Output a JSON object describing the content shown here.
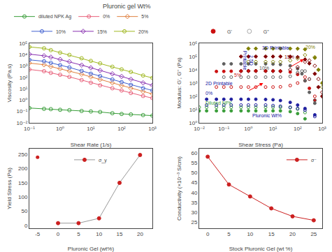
{
  "chart_data": [
    {
      "type": "line",
      "title": "Pluronic gel Wt%",
      "x_label": "Shear Rate (1/s)",
      "y_label": "Viscosity (Pa.s)",
      "log": true,
      "xlim": [
        0.1,
        1000
      ],
      "ylim": [
        0.01,
        100000
      ],
      "xticks": [
        {
          "value": 0.1,
          "label": "10⁻¹"
        },
        {
          "value": 1,
          "label": "10⁰"
        },
        {
          "value": 10,
          "label": "10¹"
        },
        {
          "value": 100,
          "label": "10²"
        },
        {
          "value": 1000,
          "label": "10³"
        }
      ],
      "yticks": [
        {
          "value": 0.01,
          "label": "10⁻²"
        },
        {
          "value": 0.1,
          "label": "10⁻¹"
        },
        {
          "value": 1,
          "label": "10⁰"
        },
        {
          "value": 10,
          "label": "10¹"
        },
        {
          "value": 100,
          "label": "10²"
        },
        {
          "value": 1000,
          "label": "10³"
        },
        {
          "value": 10000,
          "label": "10⁴"
        },
        {
          "value": 100000,
          "label": "10⁵"
        }
      ],
      "grid": false,
      "legend": "top",
      "series": [
        {
          "name": "diluted NPK Ag",
          "color": "#3a9e3a",
          "marker": "circle-open",
          "x": [
            0.1,
            0.3,
            0.5,
            1,
            2,
            5,
            10,
            20,
            50,
            100,
            200,
            500,
            1000
          ],
          "values": [
            0.2,
            0.17,
            0.16,
            0.14,
            0.13,
            0.11,
            0.1,
            0.09,
            0.07,
            0.06,
            0.055,
            0.048,
            0.043
          ]
        },
        {
          "name": "0%",
          "color": "#e8607a",
          "marker": "circle-open",
          "x": [
            0.1,
            0.3,
            0.5,
            1,
            2,
            5,
            10,
            20,
            50,
            100,
            200,
            500,
            1000
          ],
          "values": [
            500,
            350,
            250,
            170,
            110,
            58,
            34,
            20,
            11,
            7,
            4.2,
            2.3,
            1.5
          ]
        },
        {
          "name": "5%",
          "color": "#e08040",
          "marker": "diamond-open",
          "x": [
            0.1,
            0.3,
            0.5,
            1,
            2,
            5,
            10,
            20,
            50,
            100,
            200,
            500,
            1000
          ],
          "values": [
            1800,
            1300,
            900,
            580,
            360,
            190,
            110,
            65,
            33,
            19,
            11,
            5.5,
            3.5
          ]
        },
        {
          "name": "10%",
          "color": "#4060d0",
          "marker": "circle-open",
          "x": [
            0.1,
            0.3,
            0.5,
            1,
            2,
            5,
            10,
            20,
            50,
            100,
            200,
            500,
            1000
          ],
          "values": [
            3500,
            2600,
            1900,
            1200,
            750,
            370,
            210,
            130,
            65,
            38,
            22,
            11,
            7
          ]
        },
        {
          "name": "15%",
          "color": "#8830b0",
          "marker": "diamond-open",
          "x": [
            0.1,
            0.3,
            0.5,
            1,
            2,
            5,
            10,
            20,
            50,
            100,
            200,
            500,
            1000
          ],
          "values": [
            11000,
            8000,
            6000,
            3800,
            2400,
            1200,
            700,
            410,
            205,
            120,
            68,
            33,
            20
          ]
        },
        {
          "name": "20%",
          "color": "#a0b820",
          "marker": "circle-open",
          "x": [
            0.1,
            0.3,
            0.5,
            1,
            2,
            5,
            10,
            20,
            50,
            100,
            200,
            500,
            1000
          ],
          "values": [
            48000,
            36000,
            25000,
            15000,
            9500,
            4800,
            2800,
            1700,
            860,
            510,
            300,
            145,
            90
          ]
        }
      ]
    },
    {
      "type": "scatter",
      "x_label": "Shear Stress (Pa)",
      "y_label": "Modulus: G', G'' (Pa)",
      "log": true,
      "xlim": [
        0.01,
        1000
      ],
      "ylim": [
        1,
        1000000
      ],
      "xticks": [
        {
          "value": 0.01,
          "label": "10⁻²"
        },
        {
          "value": 0.1,
          "label": "10⁻¹"
        },
        {
          "value": 1,
          "label": "10⁰"
        },
        {
          "value": 10,
          "label": "10¹"
        },
        {
          "value": 100,
          "label": "10²"
        },
        {
          "value": 1000,
          "label": "10³"
        }
      ],
      "yticks": [
        {
          "value": 1,
          "label": "10⁰"
        },
        {
          "value": 10,
          "label": "10¹"
        },
        {
          "value": 100,
          "label": "10²"
        },
        {
          "value": 1000,
          "label": "10³"
        },
        {
          "value": 10000,
          "label": "10⁴"
        },
        {
          "value": 100000,
          "label": "10⁵"
        },
        {
          "value": 1000000,
          "label": "10⁶"
        }
      ],
      "grid": false,
      "legend": "top",
      "legend_entries": [
        {
          "name": "G'",
          "color": "#cc1010",
          "marker": "circle"
        },
        {
          "name": "G''",
          "color": "#aaaaaa",
          "marker": "circle-open"
        }
      ],
      "series": [
        {
          "color": "#3a9e3a",
          "marker": "circle",
          "x": [
            0.01,
            0.02,
            0.05,
            0.1,
            0.2,
            0.5,
            1,
            2,
            5,
            10,
            20,
            50,
            100,
            200
          ],
          "values": [
            8,
            8,
            8,
            8,
            8,
            8,
            8,
            8,
            8,
            8,
            8,
            7,
            5,
            2
          ]
        },
        {
          "color": "#3a9e3a",
          "marker": "circle-open",
          "x": [
            0.01,
            0.02,
            0.05,
            0.1,
            0.2,
            0.5,
            1,
            2,
            5,
            10,
            20,
            50,
            100,
            200
          ],
          "values": [
            15,
            15,
            15,
            15,
            15,
            15,
            15,
            15,
            15,
            15,
            15,
            14,
            11,
            6
          ]
        },
        {
          "color": "#2020a0",
          "marker": "circle",
          "x": [
            0.02,
            0.05,
            0.1,
            0.2,
            0.5,
            1,
            2,
            5,
            10,
            20,
            50,
            100,
            200,
            500
          ],
          "values": [
            60,
            60,
            60,
            60,
            60,
            60,
            60,
            58,
            55,
            48,
            35,
            22,
            12,
            4
          ]
        },
        {
          "color": "#2020a0",
          "marker": "circle-open",
          "x": [
            0.02,
            0.05,
            0.1,
            0.2,
            0.5,
            1,
            2,
            5,
            10,
            20,
            50,
            100,
            200,
            500
          ],
          "values": [
            22,
            22,
            22,
            22,
            22,
            22,
            22,
            22,
            20,
            18,
            15,
            12,
            9,
            3
          ]
        },
        {
          "color": "#cc1010",
          "marker": "circle",
          "x": [
            0.05,
            0.1,
            0.2,
            0.5,
            1,
            2,
            5,
            10,
            20,
            50,
            100,
            200,
            300,
            500
          ],
          "values": [
            7500,
            7600,
            7800,
            8000,
            8200,
            8300,
            8200,
            8100,
            7800,
            6800,
            4500,
            1500,
            400,
            50
          ]
        },
        {
          "color": "#cc1010",
          "marker": "circle-open",
          "x": [
            0.05,
            0.1,
            0.2,
            0.5,
            1,
            2,
            5,
            10,
            20,
            50,
            100,
            200,
            300,
            500
          ],
          "values": [
            500,
            500,
            500,
            500,
            500,
            500,
            500,
            500,
            520,
            650,
            1000,
            2800,
            2000,
            100
          ]
        },
        {
          "color": "#606060",
          "marker": "circle",
          "x": [
            0.1,
            0.2,
            0.5,
            1,
            2,
            5,
            10,
            20,
            50,
            100,
            150,
            200,
            300,
            500
          ],
          "values": [
            28000,
            28000,
            28000,
            28000,
            28000,
            28000,
            27000,
            25000,
            20000,
            12000,
            5000,
            1500,
            200,
            30
          ]
        },
        {
          "color": "#606060",
          "marker": "circle-open",
          "x": [
            0.1,
            0.2,
            0.5,
            1,
            2,
            5,
            10,
            20,
            50,
            100,
            150,
            200,
            300,
            500
          ],
          "values": [
            2800,
            2800,
            2800,
            2800,
            2800,
            2800,
            2800,
            2800,
            3200,
            6000,
            8000,
            8000,
            2000,
            50
          ]
        },
        {
          "color": "#800000",
          "marker": "diamond",
          "x": [
            0.5,
            1,
            2,
            5,
            10,
            20,
            50,
            100,
            200,
            300,
            500,
            700,
            1000
          ],
          "values": [
            100000,
            100000,
            100000,
            100000,
            100000,
            100000,
            98000,
            90000,
            60000,
            30000,
            5000,
            500,
            100
          ]
        },
        {
          "color": "#800000",
          "marker": "diamond-open",
          "x": [
            0.5,
            1,
            2,
            5,
            10,
            20,
            50,
            100,
            200,
            300,
            500,
            700,
            1000
          ],
          "values": [
            8000,
            8000,
            8000,
            8000,
            8000,
            8000,
            10000,
            16000,
            40000,
            50000,
            20000,
            2000,
            200
          ]
        },
        {
          "color": "#808000",
          "marker": "diamond",
          "x": [
            1,
            2,
            5,
            10,
            20,
            50,
            100,
            200,
            500,
            700,
            1000
          ],
          "values": [
            400000,
            400000,
            400000,
            400000,
            400000,
            400000,
            390000,
            350000,
            80000,
            10000,
            1000
          ]
        },
        {
          "color": "#808000",
          "marker": "diamond-open",
          "x": [
            1,
            2,
            5,
            10,
            20,
            50,
            100,
            200,
            500,
            700,
            1000
          ],
          "values": [
            40000,
            40000,
            40000,
            40000,
            40000,
            50000,
            70000,
            130000,
            90000,
            10000,
            500
          ]
        }
      ],
      "annotations": [
        {
          "text": "3D Printable",
          "color": "#1010a0"
        },
        {
          "text": "2.5D\nPrintable",
          "color": "#1010a0"
        },
        {
          "text": "2D Printable",
          "color": "#1010a0"
        },
        {
          "text": "20%",
          "color": "#808000"
        },
        {
          "text": "15%",
          "color": "#800000"
        },
        {
          "text": "10%",
          "color": "#505050"
        },
        {
          "text": "5%",
          "color": "#cc1010"
        },
        {
          "text": "0%",
          "color": "#2020a0"
        },
        {
          "text": "Diluted NPK",
          "color": "#3a9e3a"
        },
        {
          "text": "Pluronic Wt%",
          "color": "#1010a0"
        },
        {
          "type": "arrow",
          "color": "red"
        },
        {
          "type": "arrow",
          "color": "red"
        }
      ]
    },
    {
      "type": "line",
      "x_label": "Pluronic Gel (wt%)",
      "y_label": "Yield Stress (Pa)",
      "xlim": [
        -7,
        23
      ],
      "ylim": [
        -10,
        270
      ],
      "xticks": [
        -5,
        0,
        5,
        10,
        15,
        20
      ],
      "yticks": [
        0,
        50,
        100,
        150,
        200,
        250
      ],
      "grid": false,
      "legend": "upper center",
      "series": [
        {
          "name": "σ_y",
          "color": "#cc2020",
          "line_color": "#999999",
          "marker": "circle",
          "x": [
            0,
            5,
            10,
            15,
            20
          ],
          "values": [
            8,
            8,
            25,
            150,
            248
          ]
        }
      ],
      "points": {
        "color": "#cc2020",
        "marker": "circle",
        "x": [
          -5
        ],
        "values": [
          240
        ]
      }
    },
    {
      "type": "line",
      "x_label": "Stock Pluronic Gel (wt %)",
      "y_label": "Conductivity (×10⁻³ S/cm)",
      "xlim": [
        -2,
        27
      ],
      "ylim": [
        22,
        62
      ],
      "xticks": [
        0,
        5,
        10,
        15,
        20,
        25
      ],
      "yticks": [
        25,
        30,
        35,
        40,
        45,
        50,
        55,
        60
      ],
      "grid": false,
      "legend": "upper right",
      "series": [
        {
          "name": "σ⁻",
          "color": "#cc2020",
          "line_color": "#cc2020",
          "marker": "circle",
          "x": [
            0,
            5,
            10,
            15,
            20,
            25
          ],
          "values": [
            58,
            44,
            38,
            32,
            28,
            26
          ]
        }
      ]
    }
  ]
}
